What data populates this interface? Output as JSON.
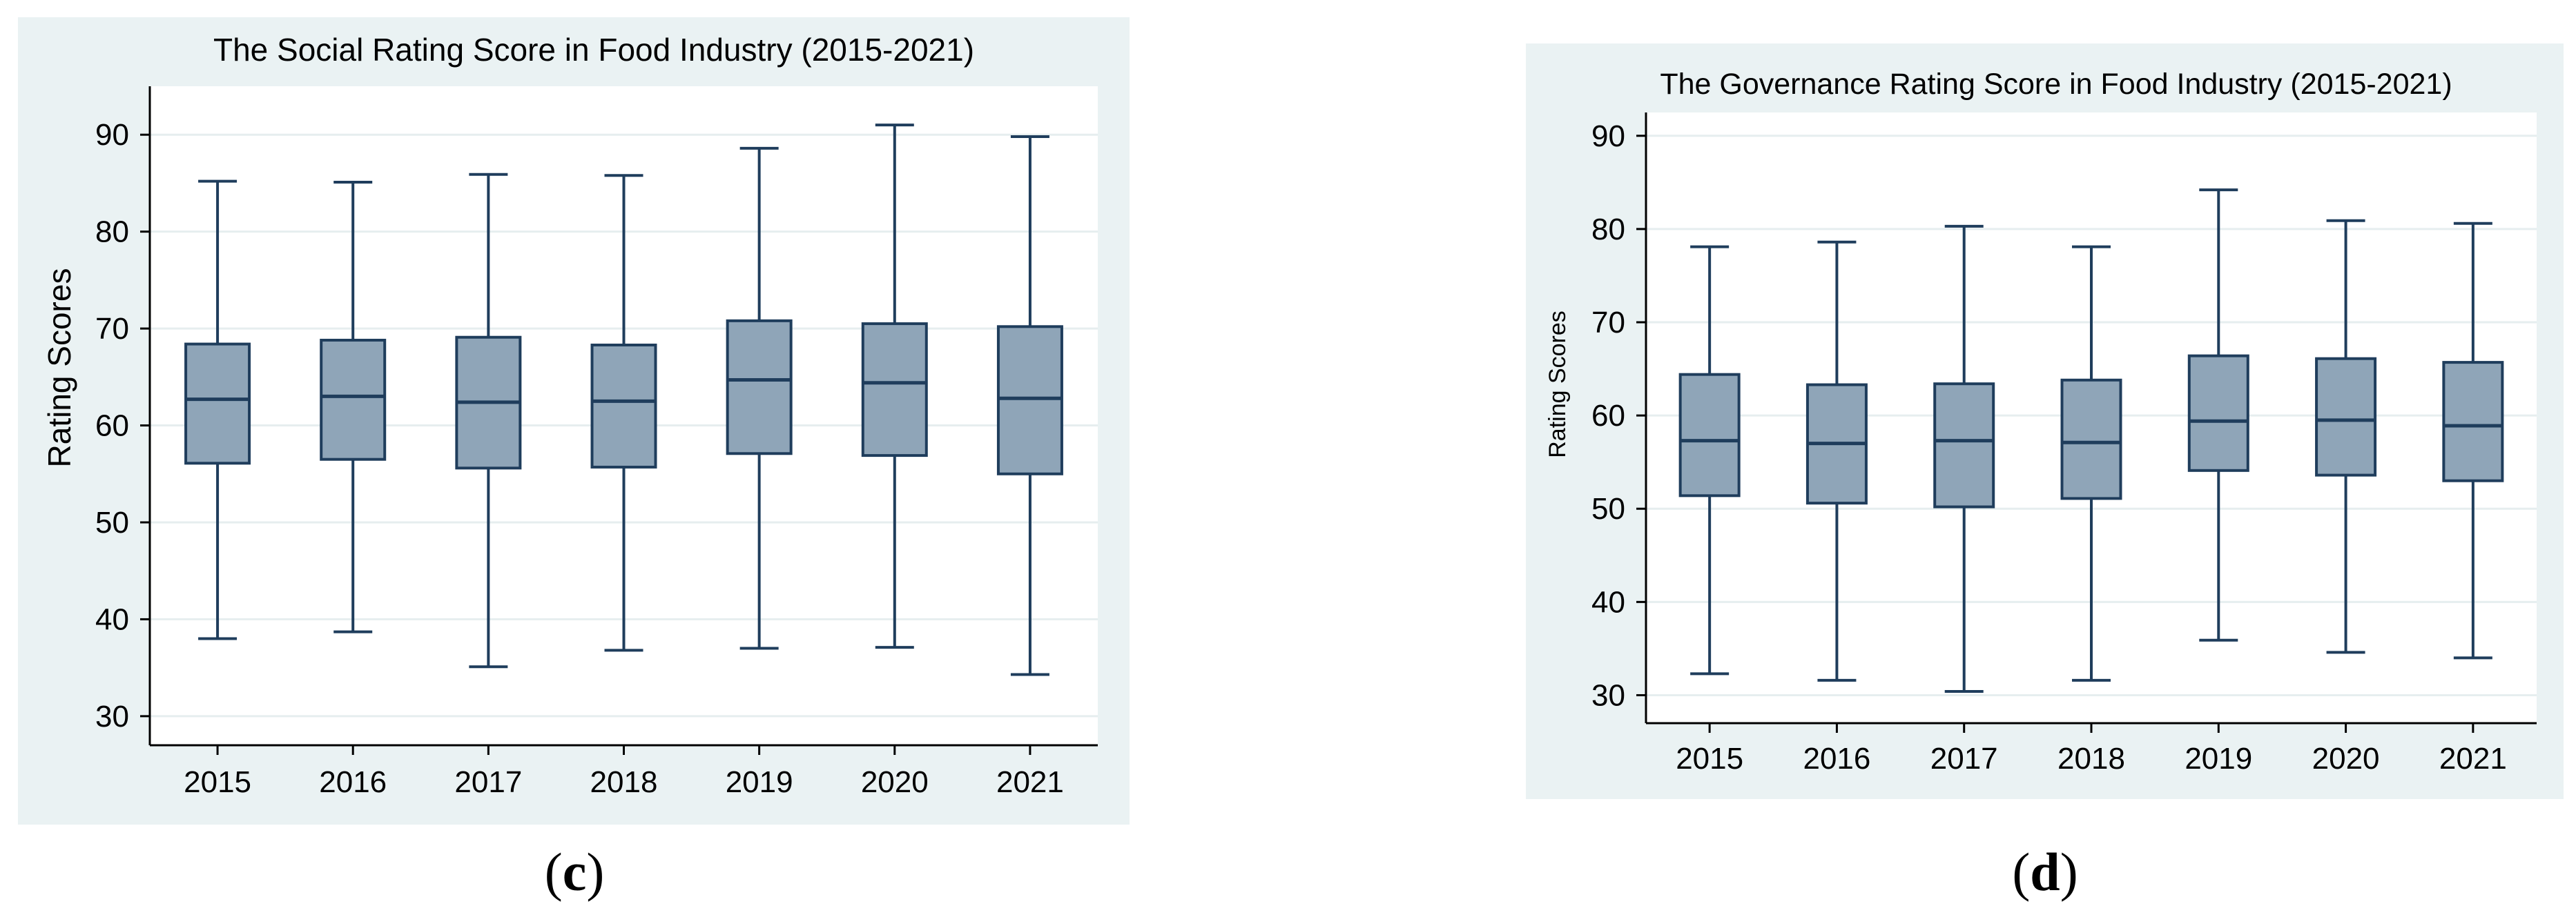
{
  "colors": {
    "panel_background": "#eaf2f3",
    "plot_background": "#ffffff",
    "box_fill": "#8fa5b8",
    "box_stroke": "#1f3d5c"
  },
  "chart_data": [
    {
      "type": "box",
      "panel_label": "c",
      "title": "The Social Rating Score in Food Industry (2015-2021)",
      "xlabel": "",
      "ylabel": "Rating Scores",
      "ylim": [
        27,
        95
      ],
      "yticks": [
        30,
        40,
        50,
        60,
        70,
        80,
        90
      ],
      "grid": true,
      "legend": "none",
      "categories": [
        "2015",
        "2016",
        "2017",
        "2018",
        "2019",
        "2020",
        "2021"
      ],
      "series": [
        {
          "min": [
            38.0,
            38.7,
            35.1,
            36.8,
            37.0,
            37.1,
            34.3
          ],
          "q1": [
            56.1,
            56.5,
            55.6,
            55.7,
            57.1,
            56.9,
            55.0
          ],
          "median": [
            62.7,
            63.0,
            62.4,
            62.5,
            64.7,
            64.4,
            62.8
          ],
          "q3": [
            68.4,
            68.8,
            69.1,
            68.3,
            70.8,
            70.5,
            70.2
          ],
          "max": [
            85.2,
            85.1,
            85.9,
            85.8,
            88.6,
            91.0,
            89.8
          ]
        }
      ]
    },
    {
      "type": "box",
      "panel_label": "d",
      "title": "The Governance Rating Score in Food Industry (2015-2021)",
      "xlabel": "",
      "ylabel": "Rating Scores",
      "ylim": [
        27,
        92.5
      ],
      "yticks": [
        30,
        40,
        50,
        60,
        70,
        80,
        90
      ],
      "grid": true,
      "legend": "none",
      "categories": [
        "2015",
        "2016",
        "2017",
        "2018",
        "2019",
        "2020",
        "2021"
      ],
      "series": [
        {
          "min": [
            32.3,
            31.6,
            30.4,
            31.6,
            35.9,
            34.6,
            34.0
          ],
          "q1": [
            51.4,
            50.6,
            50.2,
            51.1,
            54.1,
            53.6,
            53.0
          ],
          "median": [
            57.3,
            57.0,
            57.3,
            57.1,
            59.4,
            59.5,
            58.9
          ],
          "q3": [
            64.4,
            63.3,
            63.4,
            63.8,
            66.4,
            66.1,
            65.7
          ],
          "max": [
            78.1,
            78.6,
            80.3,
            78.1,
            84.2,
            80.9,
            80.6
          ]
        }
      ]
    }
  ]
}
